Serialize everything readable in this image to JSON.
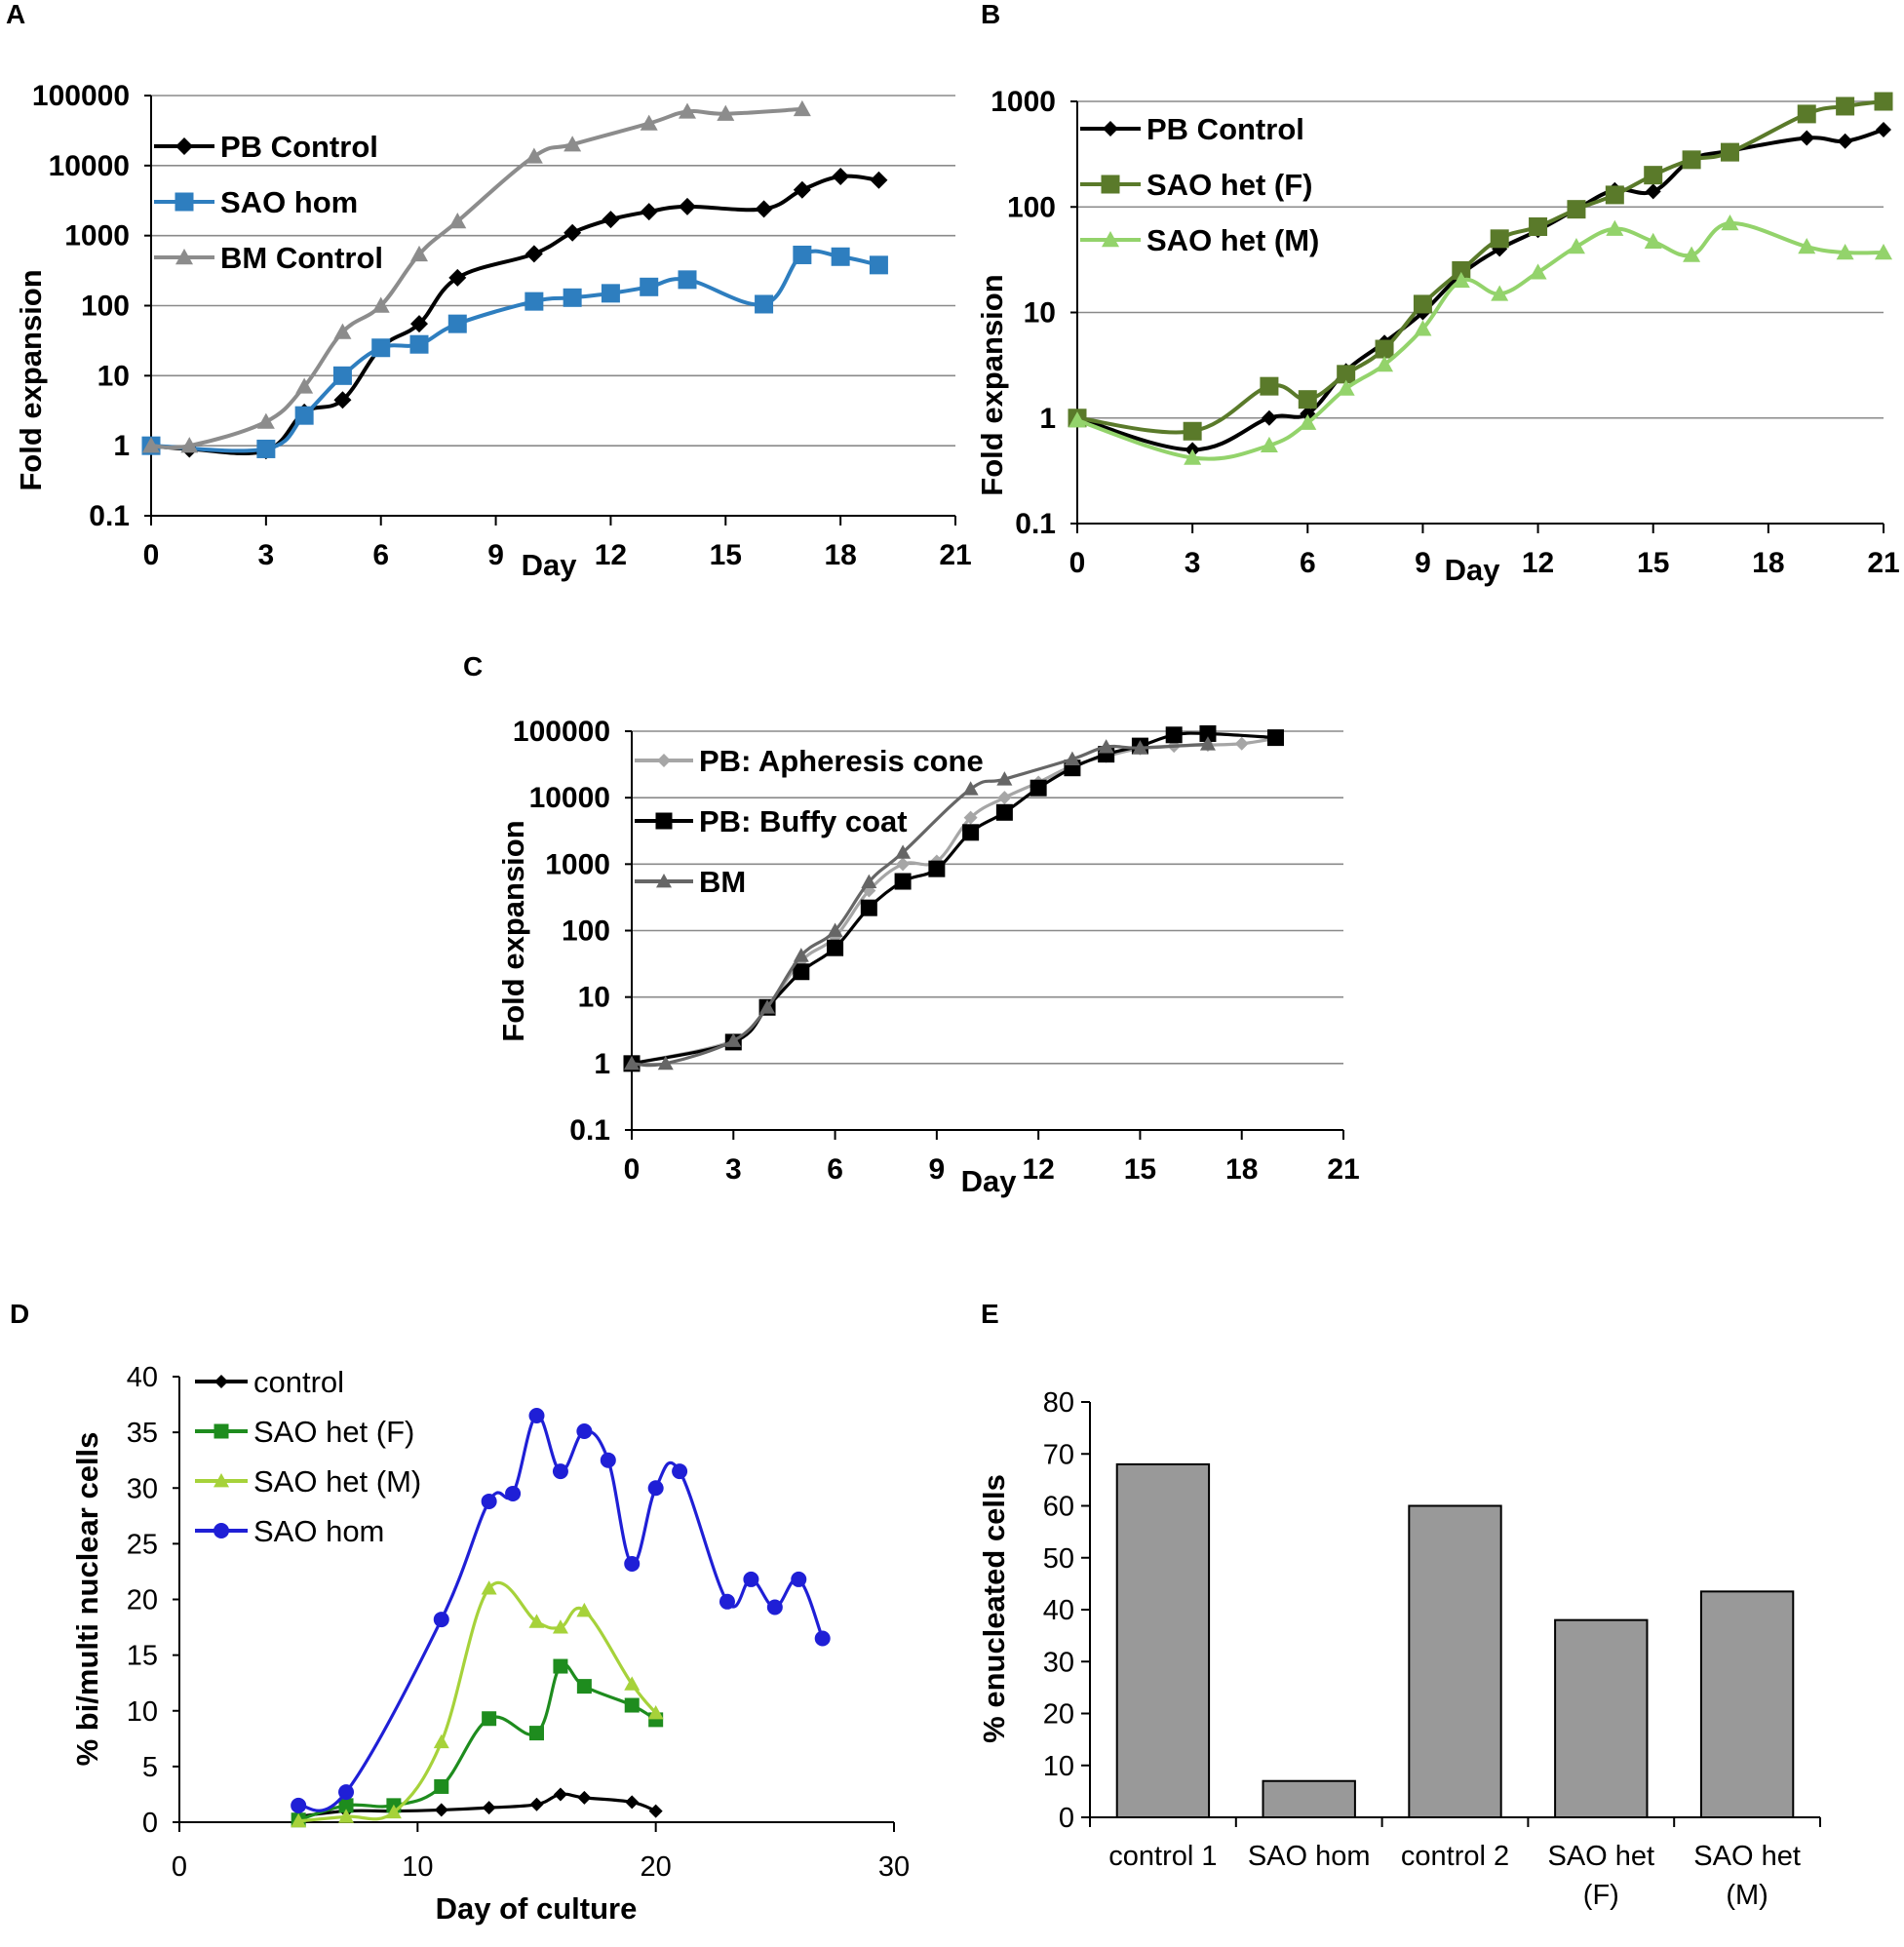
{
  "chart_data": [
    {
      "panel": "A",
      "type": "line",
      "yscale": "log",
      "xlabel": "Day",
      "ylabel": "Fold expansion",
      "xlim": [
        0,
        21
      ],
      "ylim": [
        0.1,
        100000
      ],
      "xticks": [
        "0",
        "3",
        "6",
        "9",
        "12",
        "15",
        "18",
        "21"
      ],
      "yticks": [
        "0.1",
        "1",
        "10",
        "100",
        "1000",
        "10000",
        "100000"
      ],
      "grid": true,
      "series": [
        {
          "name": "PB Control",
          "color": "#000000",
          "marker": "diamond",
          "x": [
            0,
            1,
            3,
            4,
            5,
            6,
            7,
            8,
            10,
            11,
            12,
            13,
            14,
            16,
            17,
            18,
            19
          ],
          "y": [
            1,
            0.9,
            0.85,
            3,
            4.5,
            25,
            55,
            250,
            550,
            1100,
            1700,
            2200,
            2600,
            2400,
            4500,
            7000,
            6200
          ]
        },
        {
          "name": "SAO hom",
          "color": "#2e7ebf",
          "marker": "square",
          "x": [
            0,
            3,
            4,
            5,
            6,
            7,
            8,
            10,
            11,
            12,
            13,
            14,
            16,
            17,
            18,
            19
          ],
          "y": [
            1,
            0.9,
            2.7,
            10,
            25,
            28,
            55,
            115,
            130,
            150,
            185,
            235,
            105,
            530,
            500,
            380
          ]
        },
        {
          "name": "BM Control",
          "color": "#8c8c8c",
          "marker": "triangle",
          "x": [
            0,
            1,
            3,
            4,
            5,
            6,
            7,
            8,
            10,
            11,
            13,
            14,
            15,
            17
          ],
          "y": [
            1,
            1,
            2.2,
            7,
            42,
            100,
            540,
            1600,
            13500,
            20000,
            40000,
            59000,
            55000,
            64000
          ]
        }
      ]
    },
    {
      "panel": "B",
      "type": "line",
      "yscale": "log",
      "xlabel": "Day",
      "ylabel": "Fold expansion",
      "xlim": [
        0,
        21
      ],
      "ylim": [
        0.1,
        1000
      ],
      "xticks": [
        "0",
        "3",
        "6",
        "9",
        "12",
        "15",
        "18",
        "21"
      ],
      "yticks": [
        "0.1",
        "1",
        "10",
        "100",
        "1000"
      ],
      "grid": true,
      "series": [
        {
          "name": "PB Control",
          "color": "#000000",
          "marker": "diamond",
          "x": [
            0,
            3,
            5,
            6,
            7,
            8,
            9,
            10,
            11,
            12,
            13,
            14,
            15,
            16,
            17,
            19,
            20,
            21
          ],
          "y": [
            1,
            0.5,
            1,
            1.1,
            2.8,
            5.2,
            10,
            23,
            40,
            60,
            95,
            145,
            140,
            280,
            340,
            450,
            420,
            540
          ]
        },
        {
          "name": "SAO het (F)",
          "color": "#5a7a2a",
          "marker": "square",
          "x": [
            0,
            3,
            5,
            6,
            7,
            8,
            9,
            10,
            11,
            12,
            13,
            14,
            15,
            16,
            17,
            19,
            20,
            21
          ],
          "y": [
            1,
            0.75,
            2,
            1.5,
            2.6,
            4.5,
            12,
            25,
            50,
            65,
            95,
            130,
            200,
            280,
            330,
            760,
            900,
            1000
          ]
        },
        {
          "name": "SAO het (M)",
          "color": "#93d36b",
          "marker": "triangle",
          "x": [
            0,
            3,
            5,
            6,
            7,
            8,
            9,
            10,
            11,
            12,
            13,
            14,
            15,
            16,
            17,
            19,
            20,
            21
          ],
          "y": [
            0.95,
            0.42,
            0.55,
            0.9,
            1.9,
            3.2,
            7,
            20,
            15,
            24,
            42,
            62,
            47,
            35,
            70,
            42,
            37,
            37
          ]
        }
      ]
    },
    {
      "panel": "C",
      "type": "line",
      "yscale": "log",
      "xlabel": "Day",
      "ylabel": "Fold expansion",
      "xlim": [
        0,
        21
      ],
      "ylim": [
        0.1,
        100000
      ],
      "xticks": [
        "0",
        "3",
        "6",
        "9",
        "12",
        "15",
        "18",
        "21"
      ],
      "yticks": [
        "0.1",
        "1",
        "10",
        "100",
        "1000",
        "10000",
        "100000"
      ],
      "grid": true,
      "series": [
        {
          "name": "PB: Apheresis cone",
          "color": "#a6a6a6",
          "marker": "diamond",
          "x": [
            0,
            3,
            4,
            5,
            6,
            7,
            8,
            9,
            10,
            11,
            12,
            13,
            14,
            15,
            16,
            17,
            18,
            19
          ],
          "y": [
            1,
            2.2,
            7,
            35,
            80,
            400,
            1000,
            1100,
            5000,
            10000,
            17000,
            30000,
            42000,
            55000,
            60000,
            62000,
            65000,
            78000
          ]
        },
        {
          "name": "PB: Buffy coat",
          "color": "#000000",
          "marker": "square",
          "x": [
            0,
            3,
            4,
            5,
            6,
            7,
            8,
            9,
            10,
            11,
            12,
            13,
            14,
            15,
            16,
            17,
            19
          ],
          "y": [
            1,
            2.1,
            7,
            24,
            55,
            220,
            550,
            850,
            3000,
            6000,
            14000,
            28000,
            45000,
            60000,
            88000,
            92000,
            80000
          ]
        },
        {
          "name": "BM",
          "color": "#666666",
          "marker": "triangle",
          "x": [
            0,
            1,
            3,
            4,
            5,
            6,
            7,
            8,
            10,
            11,
            13,
            14,
            15,
            17
          ],
          "y": [
            1,
            1,
            2.2,
            7,
            42,
            100,
            540,
            1500,
            13500,
            19000,
            38000,
            58000,
            56000,
            64000
          ]
        }
      ]
    },
    {
      "panel": "D",
      "type": "line",
      "xlabel": "Day of culture",
      "ylabel": "% bi/multi nuclear cells",
      "xlim": [
        0,
        30
      ],
      "ylim": [
        0,
        40
      ],
      "xticks": [
        "0",
        "10",
        "20",
        "30"
      ],
      "yticks": [
        "0",
        "5",
        "10",
        "15",
        "20",
        "25",
        "30",
        "35",
        "40"
      ],
      "grid": false,
      "series": [
        {
          "name": "control",
          "color": "#000000",
          "marker": "diamond",
          "x": [
            5,
            7,
            9,
            11,
            13,
            15,
            16,
            17,
            19,
            20
          ],
          "y": [
            0.5,
            1,
            1,
            1.1,
            1.3,
            1.6,
            2.5,
            2.2,
            1.8,
            1
          ]
        },
        {
          "name": "SAO het (F)",
          "color": "#1e8c1e",
          "marker": "square",
          "x": [
            5,
            7,
            9,
            11,
            13,
            15,
            16,
            17,
            19,
            20
          ],
          "y": [
            0.2,
            1.5,
            1.5,
            3.2,
            9.3,
            8,
            14,
            12.2,
            10.5,
            9.2
          ]
        },
        {
          "name": "SAO het (M)",
          "color": "#a6d23a",
          "marker": "triangle",
          "x": [
            5,
            7,
            9,
            11,
            13,
            15,
            16,
            17,
            19,
            20
          ],
          "y": [
            0.1,
            0.5,
            0.9,
            7.2,
            21,
            18,
            17.5,
            19,
            12.4,
            9.8
          ]
        },
        {
          "name": "SAO hom",
          "color": "#1f1fd6",
          "marker": "circle",
          "x": [
            5,
            7,
            11,
            13,
            14,
            15,
            16,
            17,
            18,
            19,
            20,
            21,
            23,
            24,
            25,
            26,
            27
          ],
          "y": [
            1.5,
            2.7,
            18.2,
            28.8,
            29.5,
            36.5,
            31.5,
            35.1,
            32.5,
            23.2,
            30,
            31.5,
            19.8,
            21.8,
            19.3,
            21.8,
            16.5
          ]
        }
      ]
    },
    {
      "panel": "E",
      "type": "bar",
      "ylabel": "% enucleated cells",
      "ylim": [
        0,
        80
      ],
      "yticks": [
        "0",
        "10",
        "20",
        "30",
        "40",
        "50",
        "60",
        "70",
        "80"
      ],
      "categories": [
        [
          "control 1"
        ],
        [
          "SAO hom"
        ],
        [
          "control 2"
        ],
        [
          "SAO het",
          "(F)"
        ],
        [
          "SAO het",
          "(M)"
        ]
      ],
      "values": [
        68,
        7,
        60,
        38,
        43.5
      ],
      "color": "#999999"
    }
  ]
}
